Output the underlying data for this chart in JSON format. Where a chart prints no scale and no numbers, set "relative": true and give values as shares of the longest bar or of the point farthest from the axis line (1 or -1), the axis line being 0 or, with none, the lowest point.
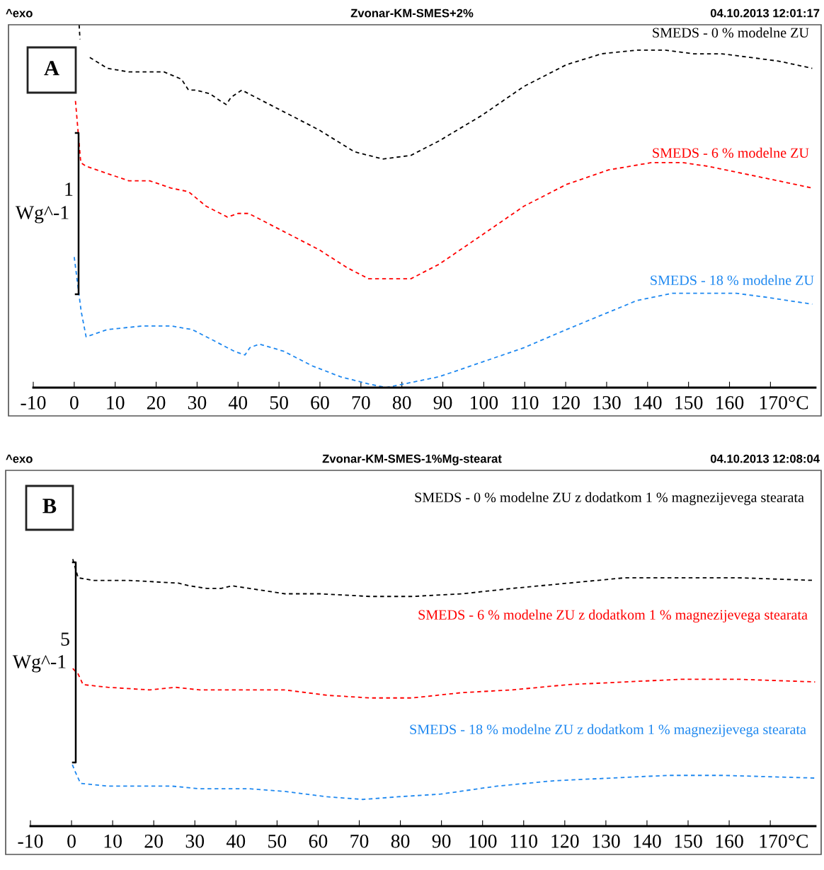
{
  "chart_data": [
    {
      "type": "line",
      "relative": true,
      "title": "Zvonar-KM-SMES+2%",
      "annotations": [
        "^exo",
        "04.10.2013 12:01:17",
        "A",
        "1",
        "Wg^-1"
      ],
      "line_style": "dashed",
      "xlim": [
        -10,
        181
      ],
      "xticks": [
        -10,
        0,
        10,
        20,
        30,
        40,
        50,
        60,
        70,
        80,
        90,
        100,
        110,
        120,
        130,
        140,
        150,
        160,
        {
          "value": 170,
          "label": "170°C"
        }
      ],
      "series": [
        {
          "name": "SMEDS - 0 % modelne ZU",
          "color": "#000000",
          "x": [
            1.2,
            1.4,
            2.5,
            3.8,
            8.1,
            13.3,
            21.9,
            26.2,
            27.9,
            29.7,
            33.1,
            35.7,
            37.1,
            38.3,
            40.9,
            44.3,
            51.2,
            59.8,
            68.4,
            75.3,
            82.2,
            89.1,
            99.5,
            109.8,
            120.2,
            128.8,
            137.4,
            144.3,
            151.2,
            158.1,
            165.0,
            171.9,
            180.2
          ],
          "values": [
            1.0,
            0.96,
            null,
            0.91,
            0.88,
            0.87,
            0.87,
            0.85,
            0.82,
            0.82,
            0.81,
            0.79,
            0.78,
            0.8,
            0.82,
            0.8,
            0.76,
            0.71,
            0.65,
            0.63,
            0.64,
            0.68,
            0.75,
            0.83,
            0.89,
            0.92,
            0.93,
            0.93,
            0.92,
            0.92,
            0.91,
            0.9,
            0.88
          ]
        },
        {
          "name": "SMEDS - 6 % modelne ZU",
          "color": "#ff0000",
          "x": [
            0.3,
            1.6,
            2.9,
            8.1,
            13.3,
            18.4,
            23.6,
            27.9,
            32.2,
            37.4,
            40.0,
            42.6,
            51.2,
            59.8,
            66.7,
            71.9,
            77.1,
            82.2,
            89.1,
            99.5,
            109.8,
            120.2,
            130.5,
            140.9,
            148.6,
            154.7,
            163.3,
            171.9,
            180.2
          ],
          "values": [
            0.79,
            0.62,
            0.61,
            0.59,
            0.57,
            0.57,
            0.55,
            0.54,
            0.5,
            0.47,
            0.48,
            0.48,
            0.43,
            0.38,
            0.33,
            0.3,
            0.3,
            0.3,
            0.34,
            0.42,
            0.5,
            0.56,
            0.6,
            0.62,
            0.62,
            0.61,
            0.59,
            0.57,
            0.55
          ]
        },
        {
          "name": "SMEDS - 18 % modelne ZU",
          "color": "#1e88f0",
          "x": [
            0.0,
            0.9,
            1.7,
            2.9,
            8.1,
            16.7,
            23.6,
            28.8,
            34.0,
            39.1,
            41.7,
            42.9,
            45.2,
            51.2,
            58.1,
            65.0,
            71.9,
            76.2,
            80.5,
            89.1,
            99.5,
            109.8,
            120.2,
            128.8,
            137.4,
            146.0,
            154.7,
            161.6,
            168.4,
            180.2
          ],
          "values": [
            0.36,
            0.28,
            0.21,
            0.14,
            0.16,
            0.17,
            0.17,
            0.16,
            0.13,
            0.1,
            0.09,
            0.11,
            0.12,
            0.1,
            0.06,
            0.03,
            0.01,
            0.0,
            0.01,
            0.03,
            0.07,
            0.11,
            0.16,
            0.2,
            0.24,
            0.26,
            0.26,
            0.26,
            0.25,
            0.23
          ]
        }
      ]
    },
    {
      "type": "line",
      "relative": true,
      "title": "Zvonar-KM-SMES-1%Mg-stearat",
      "annotations": [
        "^exo",
        "04.10.2013 12:08:04",
        "B",
        "5",
        "Wg^-1"
      ],
      "line_style": "dashed",
      "xlim": [
        -10,
        181
      ],
      "xticks": [
        -10,
        0,
        10,
        20,
        30,
        40,
        50,
        60,
        70,
        80,
        90,
        100,
        110,
        120,
        130,
        140,
        150,
        160,
        {
          "value": 170,
          "label": "170°C"
        }
      ],
      "series": [
        {
          "name": "SMEDS - 0 % modelne ZU z dodatkom 1 % magnezijevega stearata",
          "color": "#000000",
          "x": [
            0.3,
            1.6,
            5.3,
            14.0,
            26.0,
            28.6,
            32.9,
            36.4,
            39.0,
            43.3,
            51.9,
            60.5,
            72.6,
            82.9,
            95.0,
            107.1,
            120.9,
            134.7,
            148.4,
            162.2,
            180.9
          ],
          "values": [
            1.0,
            0.93,
            0.92,
            0.92,
            0.91,
            0.9,
            0.89,
            0.89,
            0.9,
            0.89,
            0.87,
            0.87,
            0.86,
            0.86,
            0.87,
            0.89,
            0.91,
            0.93,
            0.93,
            0.93,
            0.92
          ]
        },
        {
          "name": "SMEDS - 6 % modelne ZU z dodatkom 1 % magnezijevega stearata",
          "color": "#ff0000",
          "x": [
            0.3,
            1.6,
            2.8,
            8.8,
            19.1,
            25.2,
            31.2,
            38.1,
            43.3,
            51.9,
            62.2,
            72.6,
            82.9,
            95.0,
            107.1,
            120.9,
            134.7,
            148.4,
            162.2,
            180.9
          ],
          "values": [
            0.59,
            0.57,
            0.53,
            0.52,
            0.51,
            0.52,
            0.51,
            0.51,
            0.51,
            0.51,
            0.49,
            0.48,
            0.48,
            0.5,
            0.51,
            0.53,
            0.54,
            0.55,
            0.55,
            0.54
          ]
        },
        {
          "name": "SMEDS - 18 % modelne ZU z dodatkom 1 % magnezijevega stearata",
          "color": "#1e88f0",
          "x": [
            0.2,
            1.0,
            2.2,
            8.8,
            14.0,
            19.1,
            24.3,
            31.2,
            38.1,
            43.3,
            51.9,
            62.2,
            70.9,
            79.5,
            89.8,
            103.6,
            117.4,
            131.2,
            145.0,
            158.8,
            180.9
          ],
          "values": [
            0.23,
            0.2,
            0.16,
            0.15,
            0.15,
            0.15,
            0.15,
            0.14,
            0.14,
            0.14,
            0.13,
            0.11,
            0.1,
            0.11,
            0.12,
            0.15,
            0.17,
            0.18,
            0.19,
            0.19,
            0.18
          ]
        }
      ]
    }
  ]
}
